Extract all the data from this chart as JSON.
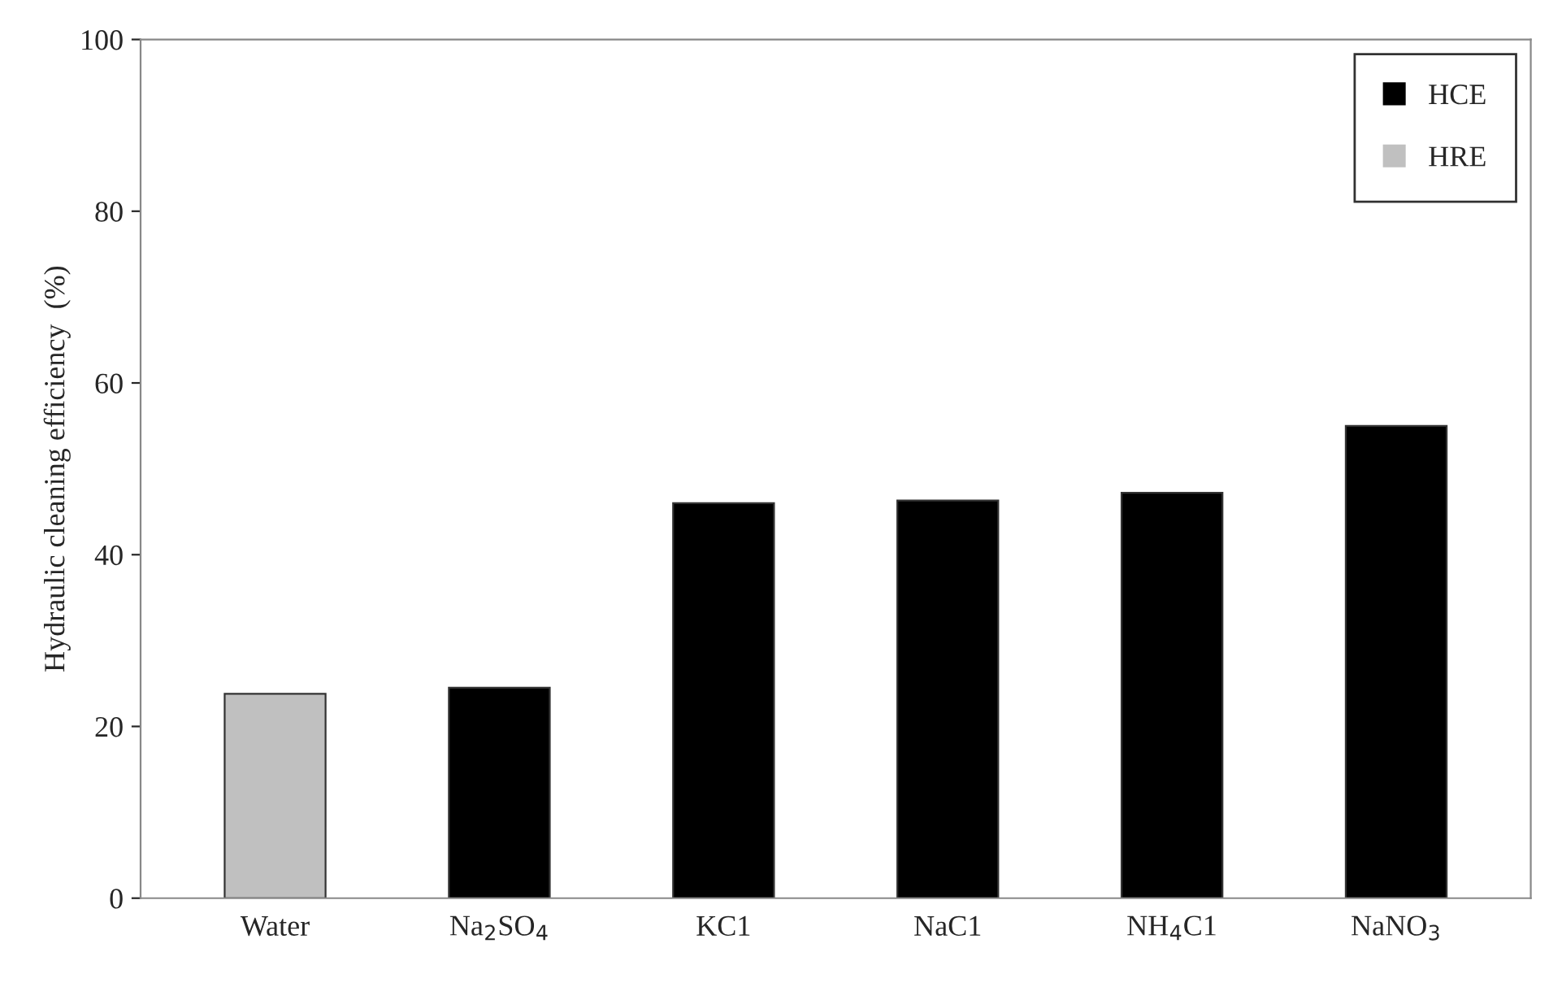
{
  "chart_data": {
    "type": "bar",
    "ylabel": "Hydraulic cleaning efficiency  (%)",
    "categories": [
      "Water",
      "Na$_{2}$SO$_{4}$",
      "KC1",
      "NaC1",
      "NH$_{4}$C1",
      "NaNO$_{3}$"
    ],
    "series": [
      {
        "name": "HCE",
        "color": "#000000",
        "values": [
          null,
          24.5,
          46,
          46.3,
          47.2,
          55
        ]
      },
      {
        "name": "HRE",
        "color": "#c0c0c0",
        "values": [
          23.8,
          null,
          null,
          null,
          null,
          null
        ]
      }
    ],
    "ylim": [
      0,
      100
    ],
    "yticks": [
      0,
      20,
      40,
      60,
      80,
      100
    ],
    "grid": false,
    "legend": "top right"
  }
}
